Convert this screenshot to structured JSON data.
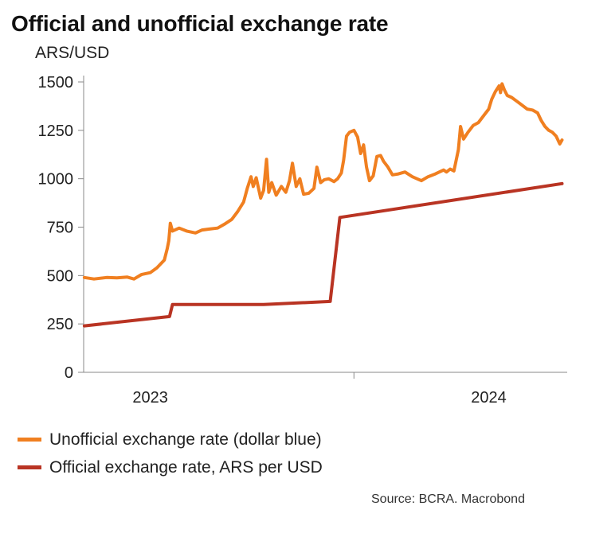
{
  "chart_data": {
    "type": "line",
    "title": "Official and unofficial exchange rate",
    "ylabel": "ARS/USD",
    "ylim": [
      0,
      1500
    ],
    "yticks": [
      0,
      250,
      500,
      750,
      1000,
      1250,
      1500
    ],
    "xlim": [
      "2023-01-01",
      "2024-10-15"
    ],
    "xtick_labels": [
      {
        "label": "2023",
        "date": "2023-04-01"
      },
      {
        "label": "",
        "date": "2024-01-01"
      },
      {
        "label": "2024",
        "date": "2024-07-01"
      }
    ],
    "grid": false,
    "legend_position": "bottom",
    "source": "Source: BCRA. Macrobond",
    "series": [
      {
        "name": "Unofficial exchange rate (dollar blue)",
        "color": "#f07f20",
        "points": [
          [
            "2023-01-02",
            490
          ],
          [
            "2023-01-15",
            482
          ],
          [
            "2023-02-01",
            490
          ],
          [
            "2023-02-15",
            488
          ],
          [
            "2023-03-01",
            492
          ],
          [
            "2023-03-10",
            482
          ],
          [
            "2023-03-20",
            505
          ],
          [
            "2023-04-01",
            515
          ],
          [
            "2023-04-10",
            540
          ],
          [
            "2023-04-20",
            580
          ],
          [
            "2023-04-24",
            640
          ],
          [
            "2023-04-26",
            680
          ],
          [
            "2023-04-28",
            770
          ],
          [
            "2023-05-01",
            730
          ],
          [
            "2023-05-10",
            745
          ],
          [
            "2023-05-20",
            730
          ],
          [
            "2023-06-01",
            720
          ],
          [
            "2023-06-10",
            735
          ],
          [
            "2023-06-20",
            740
          ],
          [
            "2023-07-01",
            745
          ],
          [
            "2023-07-10",
            765
          ],
          [
            "2023-07-20",
            790
          ],
          [
            "2023-07-28",
            830
          ],
          [
            "2023-08-05",
            880
          ],
          [
            "2023-08-10",
            950
          ],
          [
            "2023-08-15",
            1010
          ],
          [
            "2023-08-18",
            960
          ],
          [
            "2023-08-22",
            1005
          ],
          [
            "2023-08-28",
            900
          ],
          [
            "2023-09-01",
            940
          ],
          [
            "2023-09-05",
            1100
          ],
          [
            "2023-09-08",
            930
          ],
          [
            "2023-09-12",
            980
          ],
          [
            "2023-09-18",
            915
          ],
          [
            "2023-09-25",
            960
          ],
          [
            "2023-10-01",
            930
          ],
          [
            "2023-10-06",
            990
          ],
          [
            "2023-10-10",
            1080
          ],
          [
            "2023-10-15",
            960
          ],
          [
            "2023-10-20",
            1000
          ],
          [
            "2023-10-25",
            920
          ],
          [
            "2023-11-01",
            925
          ],
          [
            "2023-11-08",
            950
          ],
          [
            "2023-11-12",
            1060
          ],
          [
            "2023-11-17",
            980
          ],
          [
            "2023-11-22",
            995
          ],
          [
            "2023-11-28",
            1000
          ],
          [
            "2023-12-05",
            985
          ],
          [
            "2023-12-10",
            1000
          ],
          [
            "2023-12-15",
            1030
          ],
          [
            "2023-12-18",
            1095
          ],
          [
            "2023-12-22",
            1220
          ],
          [
            "2023-12-26",
            1240
          ],
          [
            "2024-01-01",
            1250
          ],
          [
            "2024-01-06",
            1215
          ],
          [
            "2024-01-10",
            1130
          ],
          [
            "2024-01-14",
            1175
          ],
          [
            "2024-01-18",
            1060
          ],
          [
            "2024-01-22",
            990
          ],
          [
            "2024-01-27",
            1015
          ],
          [
            "2024-02-01",
            1115
          ],
          [
            "2024-02-06",
            1120
          ],
          [
            "2024-02-10",
            1090
          ],
          [
            "2024-02-16",
            1060
          ],
          [
            "2024-02-22",
            1020
          ],
          [
            "2024-03-01",
            1025
          ],
          [
            "2024-03-10",
            1035
          ],
          [
            "2024-03-20",
            1010
          ],
          [
            "2024-04-01",
            990
          ],
          [
            "2024-04-10",
            1010
          ],
          [
            "2024-04-20",
            1025
          ],
          [
            "2024-05-01",
            1045
          ],
          [
            "2024-05-05",
            1035
          ],
          [
            "2024-05-10",
            1050
          ],
          [
            "2024-05-15",
            1040
          ],
          [
            "2024-05-21",
            1150
          ],
          [
            "2024-05-24",
            1270
          ],
          [
            "2024-05-28",
            1205
          ],
          [
            "2024-06-03",
            1240
          ],
          [
            "2024-06-10",
            1275
          ],
          [
            "2024-06-17",
            1290
          ],
          [
            "2024-06-25",
            1330
          ],
          [
            "2024-07-01",
            1360
          ],
          [
            "2024-07-05",
            1410
          ],
          [
            "2024-07-10",
            1450
          ],
          [
            "2024-07-15",
            1480
          ],
          [
            "2024-07-17",
            1445
          ],
          [
            "2024-07-19",
            1490
          ],
          [
            "2024-07-22",
            1460
          ],
          [
            "2024-07-26",
            1430
          ],
          [
            "2024-08-01",
            1420
          ],
          [
            "2024-08-08",
            1400
          ],
          [
            "2024-08-15",
            1380
          ],
          [
            "2024-08-22",
            1360
          ],
          [
            "2024-08-29",
            1355
          ],
          [
            "2024-09-05",
            1340
          ],
          [
            "2024-09-10",
            1300
          ],
          [
            "2024-09-15",
            1270
          ],
          [
            "2024-09-20",
            1250
          ],
          [
            "2024-09-25",
            1240
          ],
          [
            "2024-09-30",
            1220
          ],
          [
            "2024-10-05",
            1180
          ],
          [
            "2024-10-08",
            1200
          ]
        ]
      },
      {
        "name": "Official exchange rate, ARS per USD",
        "color": "#b93423",
        "points": [
          [
            "2023-01-02",
            240
          ],
          [
            "2023-04-27",
            288
          ],
          [
            "2023-05-01",
            350
          ],
          [
            "2023-08-11",
            350
          ],
          [
            "2023-09-01",
            350
          ],
          [
            "2023-11-30",
            366
          ],
          [
            "2023-12-13",
            800
          ],
          [
            "2024-10-08",
            975
          ]
        ]
      }
    ]
  }
}
